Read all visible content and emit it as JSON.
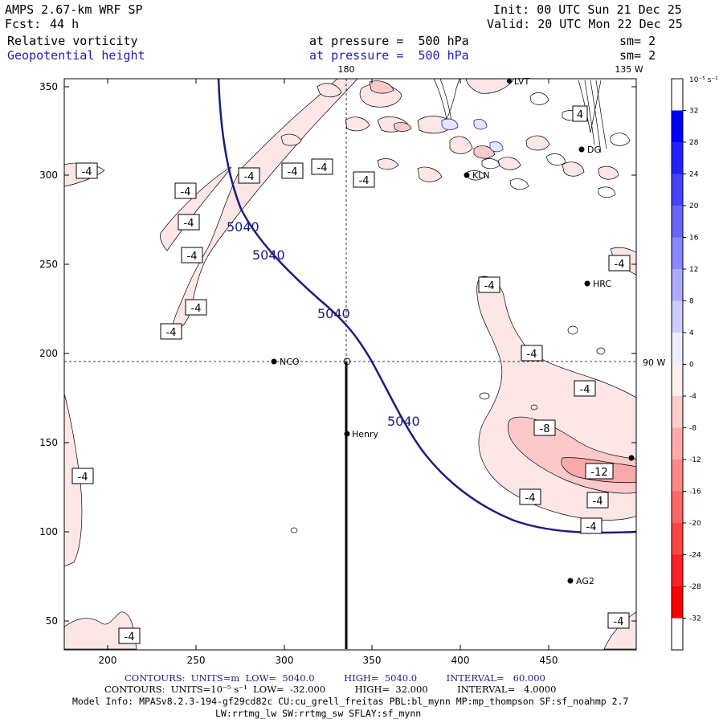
{
  "header": {
    "model": "AMPS 2.67-km WRF SP",
    "fcst_label": "Fcst:",
    "fcst_value": "44 h",
    "init": "Init: 00 UTC Sun 21 Dec 25",
    "valid": "Valid: 20 UTC Mon 22 Dec 25",
    "field1": "Relative vorticity",
    "field1_level": "at pressure =  500 hPa",
    "field1_sm": "sm= 2",
    "field2": "Geopotential height",
    "field2_level": "at pressure =  500 hPa",
    "field2_sm": "sm= 2"
  },
  "map": {
    "meridian_180": "180",
    "meridian_135w": "135 W",
    "meridian_90w": "90 W",
    "x_ticks": [
      "200",
      "250",
      "300",
      "350",
      "400",
      "450"
    ],
    "y_ticks": [
      "350",
      "300",
      "250",
      "200",
      "150",
      "100",
      "50"
    ],
    "height_label": "5040",
    "vort_labels": [
      "-4",
      "-8",
      "-12",
      "4"
    ],
    "stations": [
      "NCO",
      "Henry",
      "KLN",
      "HRC",
      "AG2",
      "DG",
      "LVT"
    ]
  },
  "colorbar": {
    "units": "10⁻⁵ s⁻¹",
    "ticks": [
      "32",
      "28",
      "24",
      "20",
      "16",
      "12",
      "8",
      "4",
      "0",
      "-4",
      "-8",
      "-12",
      "-16",
      "-20",
      "-24",
      "-28",
      "-32"
    ],
    "colors": [
      "#0000ff",
      "#2222ff",
      "#4444ff",
      "#6666ff",
      "#8888ff",
      "#aaaaff",
      "#ccccff",
      "#eeeeff",
      "#ffeeee",
      "#ffcccc",
      "#ffaaaa",
      "#ff8888",
      "#ff6666",
      "#ff4444",
      "#ff2222",
      "#ff0000"
    ]
  },
  "footer": {
    "line1": "CONTOURS:  UNITS=m  LOW=  5040.0          HIGH=  5040.0          INTERVAL=   60.000",
    "line2": "CONTOURS:  UNITS=10⁻⁵ s⁻¹  LOW=  -32.000          HIGH=  32.000          INTERVAL=   4.0000",
    "line3": "Model Info: MPASv8.2.3-194-gf29cd82c CU:cu_grell_freitas PBL:bl_mynn MP:mp_thompson SF:sf_noahmp 2.7",
    "line4": "LW:rrtmg_lw SW:rrtmg_sw SFLAY:sf_mynn"
  }
}
